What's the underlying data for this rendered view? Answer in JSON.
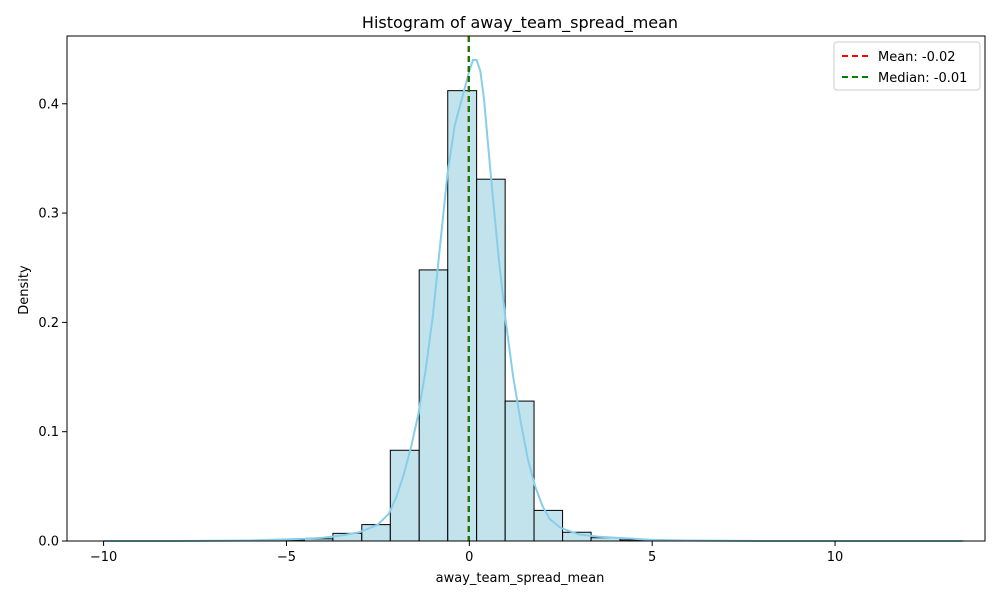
{
  "chart_data": {
    "type": "bar",
    "title": "Histogram of away_team_spread_mean",
    "xlabel": "away_team_spread_mean",
    "ylabel": "Density",
    "xlim": [
      -11,
      14.1
    ],
    "ylim": [
      0,
      0.462
    ],
    "x_ticks": [
      -10,
      -5,
      0,
      5,
      10
    ],
    "x_tick_labels": [
      "−10",
      "−5",
      "0",
      "5",
      "10"
    ],
    "y_ticks": [
      0.0,
      0.1,
      0.2,
      0.3,
      0.4
    ],
    "y_tick_labels": [
      "0.0",
      "0.1",
      "0.2",
      "0.3",
      "0.4"
    ],
    "grid": false,
    "legend_position": "top-right",
    "bins": [
      {
        "x0": -10.0,
        "x1": -9.22,
        "value": 0.0
      },
      {
        "x0": -9.22,
        "x1": -8.43,
        "value": 0.0
      },
      {
        "x0": -8.43,
        "x1": -7.65,
        "value": 0.0
      },
      {
        "x0": -7.65,
        "x1": -6.86,
        "value": 0.0
      },
      {
        "x0": -6.86,
        "x1": -6.08,
        "value": 0.0
      },
      {
        "x0": -6.08,
        "x1": -5.29,
        "value": 0.0005
      },
      {
        "x0": -5.29,
        "x1": -4.51,
        "value": 0.001
      },
      {
        "x0": -4.51,
        "x1": -3.73,
        "value": 0.002
      },
      {
        "x0": -3.73,
        "x1": -2.94,
        "value": 0.007
      },
      {
        "x0": -2.94,
        "x1": -2.16,
        "value": 0.015
      },
      {
        "x0": -2.16,
        "x1": -1.37,
        "value": 0.083
      },
      {
        "x0": -1.37,
        "x1": -0.59,
        "value": 0.248
      },
      {
        "x0": -0.59,
        "x1": 0.2,
        "value": 0.412
      },
      {
        "x0": 0.2,
        "x1": 0.98,
        "value": 0.331
      },
      {
        "x0": 0.98,
        "x1": 1.77,
        "value": 0.128
      },
      {
        "x0": 1.77,
        "x1": 2.55,
        "value": 0.028
      },
      {
        "x0": 2.55,
        "x1": 3.33,
        "value": 0.008
      },
      {
        "x0": 3.33,
        "x1": 4.12,
        "value": 0.003
      },
      {
        "x0": 4.12,
        "x1": 4.9,
        "value": 0.001
      },
      {
        "x0": 4.9,
        "x1": 5.69,
        "value": 0.0005
      },
      {
        "x0": 5.69,
        "x1": 6.47,
        "value": 0.0
      },
      {
        "x0": 6.47,
        "x1": 7.26,
        "value": 0.0
      },
      {
        "x0": 7.26,
        "x1": 8.04,
        "value": 0.0
      },
      {
        "x0": 8.04,
        "x1": 8.82,
        "value": 0.0
      },
      {
        "x0": 8.82,
        "x1": 9.61,
        "value": 0.0
      },
      {
        "x0": 9.61,
        "x1": 10.39,
        "value": 0.0
      },
      {
        "x0": 10.39,
        "x1": 11.18,
        "value": 0.0
      },
      {
        "x0": 11.18,
        "x1": 11.96,
        "value": 0.0
      },
      {
        "x0": 11.96,
        "x1": 12.75,
        "value": 0.0
      },
      {
        "x0": 12.75,
        "x1": 13.53,
        "value": 0.0
      }
    ],
    "kde": {
      "x": [
        -10,
        -8,
        -6,
        -5.5,
        -5,
        -4.5,
        -4,
        -3.5,
        -3,
        -2.5,
        -2.2,
        -2.0,
        -1.8,
        -1.6,
        -1.4,
        -1.2,
        -1.0,
        -0.8,
        -0.6,
        -0.4,
        -0.2,
        0.0,
        0.1,
        0.2,
        0.3,
        0.4,
        0.6,
        0.8,
        1.0,
        1.2,
        1.4,
        1.6,
        1.8,
        2.0,
        2.2,
        2.5,
        3.0,
        3.5,
        4.0,
        4.5,
        5.0,
        6.0,
        8.0,
        10.0,
        12.0,
        13.5
      ],
      "y": [
        0.0,
        0.0,
        0.0005,
        0.001,
        0.0015,
        0.002,
        0.003,
        0.005,
        0.008,
        0.015,
        0.025,
        0.04,
        0.06,
        0.085,
        0.115,
        0.155,
        0.205,
        0.27,
        0.335,
        0.38,
        0.405,
        0.43,
        0.44,
        0.44,
        0.43,
        0.405,
        0.33,
        0.26,
        0.2,
        0.15,
        0.11,
        0.075,
        0.05,
        0.032,
        0.02,
        0.012,
        0.006,
        0.004,
        0.003,
        0.002,
        0.001,
        0.0005,
        0.0,
        0.0,
        0.0,
        0.0
      ]
    },
    "mean": -0.02,
    "median": -0.01,
    "legend": [
      {
        "label": "Mean: -0.02",
        "color": "#ff0000"
      },
      {
        "label": "Median: -0.01",
        "color": "#008000"
      }
    ],
    "colors": {
      "bar_fill": "#add8e6",
      "bar_edge": "#000000",
      "kde": "#87ceeb",
      "mean": "#ff0000",
      "median": "#008000"
    }
  }
}
